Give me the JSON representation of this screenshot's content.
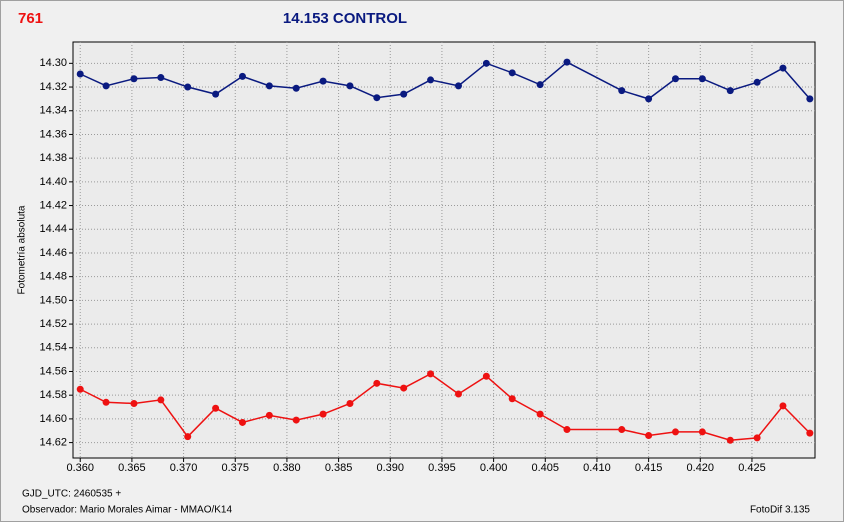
{
  "chart_data": {
    "type": "line",
    "corner_label": "761",
    "title": "14.153 CONTROL",
    "y_label": "Fotometría absoluta",
    "x_caption": "GJD_UTC: 2460535 +",
    "observer": "Observador: Mario Morales Aimar - MMAO/K14",
    "software": "FotoDif 3.135",
    "x": [
      0.36,
      0.3625,
      0.3652,
      0.3678,
      0.3704,
      0.3731,
      0.3757,
      0.3783,
      0.3809,
      0.3835,
      0.3861,
      0.3887,
      0.3913,
      0.3939,
      0.3966,
      0.3993,
      0.4018,
      0.4045,
      0.4071,
      0.4124,
      0.415,
      0.4176,
      0.4202,
      0.4229,
      0.4255,
      0.428,
      0.4306
    ],
    "series": [
      {
        "color": "#0a1a80",
        "values": [
          14.309,
          14.319,
          14.313,
          14.312,
          14.32,
          14.326,
          14.311,
          14.319,
          14.321,
          14.315,
          14.319,
          14.329,
          14.326,
          14.314,
          14.319,
          14.3,
          14.308,
          14.318,
          14.299,
          14.323,
          14.33,
          14.313,
          14.313,
          14.323,
          14.316,
          14.304,
          14.33
        ]
      },
      {
        "color": "#ee1111",
        "values": [
          14.575,
          14.586,
          14.587,
          14.584,
          14.615,
          14.591,
          14.603,
          14.597,
          14.601,
          14.596,
          14.587,
          14.57,
          14.574,
          14.562,
          14.579,
          14.564,
          14.583,
          14.596,
          14.609,
          14.609,
          14.614,
          14.611,
          14.611,
          14.618,
          14.616,
          14.589,
          14.612
        ]
      }
    ],
    "xlim": [
      0.3593,
      0.4311
    ],
    "ylim": [
      14.282,
      14.633
    ],
    "y_inverted": true,
    "grid": true,
    "xticks": [
      {
        "value": 0.36,
        "label": "0.360"
      },
      {
        "value": 0.365,
        "label": "0.365"
      },
      {
        "value": 0.37,
        "label": "0.370"
      },
      {
        "value": 0.375,
        "label": "0.375"
      },
      {
        "value": 0.38,
        "label": "0.380"
      },
      {
        "value": 0.385,
        "label": "0.385"
      },
      {
        "value": 0.39,
        "label": "0.390"
      },
      {
        "value": 0.395,
        "label": "0.395"
      },
      {
        "value": 0.4,
        "label": "0.400"
      },
      {
        "value": 0.405,
        "label": "0.405"
      },
      {
        "value": 0.41,
        "label": "0.410"
      },
      {
        "value": 0.415,
        "label": "0.415"
      },
      {
        "value": 0.42,
        "label": "0.420"
      },
      {
        "value": 0.425,
        "label": "0.425"
      }
    ],
    "yticks": [
      {
        "value": 14.3,
        "label": "14.30"
      },
      {
        "value": 14.32,
        "label": "14.32"
      },
      {
        "value": 14.34,
        "label": "14.34"
      },
      {
        "value": 14.36,
        "label": "14.36"
      },
      {
        "value": 14.38,
        "label": "14.38"
      },
      {
        "value": 14.4,
        "label": "14.40"
      },
      {
        "value": 14.42,
        "label": "14.42"
      },
      {
        "value": 14.44,
        "label": "14.44"
      },
      {
        "value": 14.46,
        "label": "14.46"
      },
      {
        "value": 14.48,
        "label": "14.48"
      },
      {
        "value": 14.5,
        "label": "14.50"
      },
      {
        "value": 14.52,
        "label": "14.52"
      },
      {
        "value": 14.54,
        "label": "14.54"
      },
      {
        "value": 14.56,
        "label": "14.56"
      },
      {
        "value": 14.58,
        "label": "14.58"
      },
      {
        "value": 14.6,
        "label": "14.60"
      },
      {
        "value": 14.62,
        "label": "14.62"
      }
    ]
  }
}
